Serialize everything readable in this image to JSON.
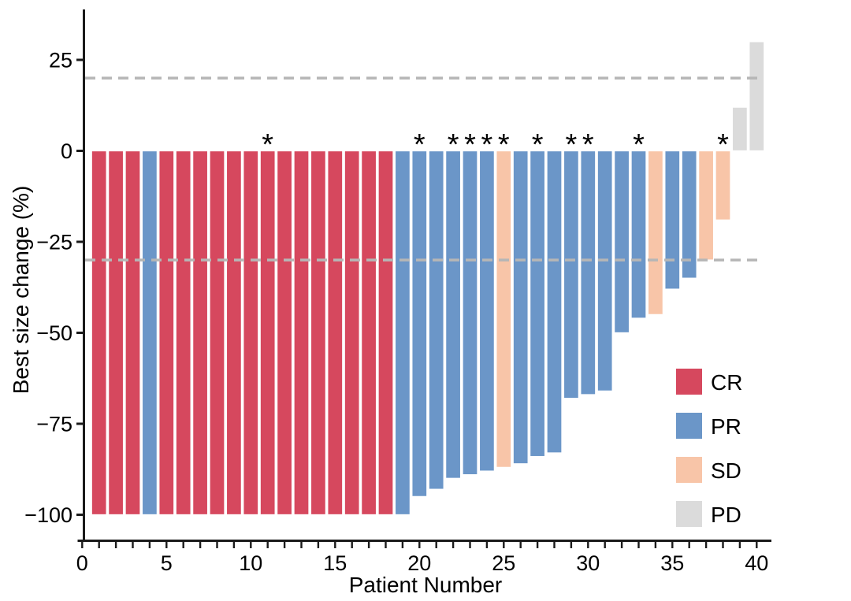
{
  "figure": {
    "background": "#FFFFFF"
  },
  "chart_data": {
    "type": "bar",
    "subtype": "waterfall",
    "title": "",
    "xlabel": "Patient Number",
    "ylabel": "Best size change (%)",
    "xlim": [
      0,
      40.8
    ],
    "ylim": [
      -104,
      39
    ],
    "grid": false,
    "x_axis": {
      "minor_tick_every": 1,
      "labeled_ticks": [
        {
          "label": "0",
          "value": 0
        },
        {
          "label": "5",
          "value": 5
        },
        {
          "label": "10",
          "value": 10
        },
        {
          "label": "15",
          "value": 15
        },
        {
          "label": "20",
          "value": 20
        },
        {
          "label": "25",
          "value": 25
        },
        {
          "label": "30",
          "value": 30
        },
        {
          "label": "35",
          "value": 35
        },
        {
          "label": "40",
          "value": 40
        }
      ]
    },
    "y_axis": {
      "labeled_ticks": [
        {
          "label": "25",
          "value": 25
        },
        {
          "label": "0",
          "value": 0
        },
        {
          "label": "−25",
          "value": -25
        },
        {
          "label": "−50",
          "value": -50
        },
        {
          "label": "−75",
          "value": -75
        },
        {
          "label": "−100",
          "value": -100
        }
      ]
    },
    "reference_lines": [
      {
        "value": 20,
        "style": "dashed",
        "color": "#B6B6B6"
      },
      {
        "value": -30,
        "style": "dashed",
        "color": "#B6B6B6"
      }
    ],
    "colors": {
      "CR": "#D6485E",
      "PR": "#6B96C8",
      "SD": "#F8C5A8",
      "PD": "#DBDBDB",
      "axis": "#1A1A1A",
      "bar_edge": "#FFFFFF"
    },
    "legend": {
      "position": "right-middle",
      "items": [
        {
          "label": "CR",
          "color": "#D6485E"
        },
        {
          "label": "PR",
          "color": "#6B96C8"
        },
        {
          "label": "SD",
          "color": "#F8C5A8"
        },
        {
          "label": "PD",
          "color": "#DBDBDB"
        }
      ]
    },
    "annotation_glyph": "*",
    "patients": [
      {
        "n": 1,
        "value": -100,
        "response": "CR",
        "asterisk": false
      },
      {
        "n": 2,
        "value": -100,
        "response": "CR",
        "asterisk": false
      },
      {
        "n": 3,
        "value": -100,
        "response": "CR",
        "asterisk": false
      },
      {
        "n": 4,
        "value": -100,
        "response": "PR",
        "asterisk": false
      },
      {
        "n": 5,
        "value": -100,
        "response": "CR",
        "asterisk": false
      },
      {
        "n": 6,
        "value": -100,
        "response": "CR",
        "asterisk": false
      },
      {
        "n": 7,
        "value": -100,
        "response": "CR",
        "asterisk": false
      },
      {
        "n": 8,
        "value": -100,
        "response": "CR",
        "asterisk": false
      },
      {
        "n": 9,
        "value": -100,
        "response": "CR",
        "asterisk": false
      },
      {
        "n": 10,
        "value": -100,
        "response": "CR",
        "asterisk": false
      },
      {
        "n": 11,
        "value": -100,
        "response": "CR",
        "asterisk": true
      },
      {
        "n": 12,
        "value": -100,
        "response": "CR",
        "asterisk": false
      },
      {
        "n": 13,
        "value": -100,
        "response": "CR",
        "asterisk": false
      },
      {
        "n": 14,
        "value": -100,
        "response": "CR",
        "asterisk": false
      },
      {
        "n": 15,
        "value": -100,
        "response": "CR",
        "asterisk": false
      },
      {
        "n": 16,
        "value": -100,
        "response": "CR",
        "asterisk": false
      },
      {
        "n": 17,
        "value": -100,
        "response": "CR",
        "asterisk": false
      },
      {
        "n": 18,
        "value": -100,
        "response": "CR",
        "asterisk": false
      },
      {
        "n": 19,
        "value": -100,
        "response": "PR",
        "asterisk": false
      },
      {
        "n": 20,
        "value": -95,
        "response": "PR",
        "asterisk": true
      },
      {
        "n": 21,
        "value": -93,
        "response": "PR",
        "asterisk": false
      },
      {
        "n": 22,
        "value": -90,
        "response": "PR",
        "asterisk": true
      },
      {
        "n": 23,
        "value": -89,
        "response": "PR",
        "asterisk": true
      },
      {
        "n": 24,
        "value": -88,
        "response": "PR",
        "asterisk": true
      },
      {
        "n": 25,
        "value": -87,
        "response": "SD",
        "asterisk": true
      },
      {
        "n": 26,
        "value": -86,
        "response": "PR",
        "asterisk": false
      },
      {
        "n": 27,
        "value": -84,
        "response": "PR",
        "asterisk": true
      },
      {
        "n": 28,
        "value": -83,
        "response": "PR",
        "asterisk": false
      },
      {
        "n": 29,
        "value": -68,
        "response": "PR",
        "asterisk": true
      },
      {
        "n": 30,
        "value": -67,
        "response": "PR",
        "asterisk": true
      },
      {
        "n": 31,
        "value": -66,
        "response": "PR",
        "asterisk": false
      },
      {
        "n": 32,
        "value": -50,
        "response": "PR",
        "asterisk": false
      },
      {
        "n": 33,
        "value": -46,
        "response": "PR",
        "asterisk": true
      },
      {
        "n": 34,
        "value": -45,
        "response": "SD",
        "asterisk": false
      },
      {
        "n": 35,
        "value": -38,
        "response": "PR",
        "asterisk": false
      },
      {
        "n": 36,
        "value": -35,
        "response": "PR",
        "asterisk": false
      },
      {
        "n": 37,
        "value": -30,
        "response": "SD",
        "asterisk": false
      },
      {
        "n": 38,
        "value": -19,
        "response": "SD",
        "asterisk": true
      },
      {
        "n": 39,
        "value": 12,
        "response": "PD",
        "asterisk": false
      },
      {
        "n": 40,
        "value": 30,
        "response": "PD",
        "asterisk": false
      }
    ]
  }
}
